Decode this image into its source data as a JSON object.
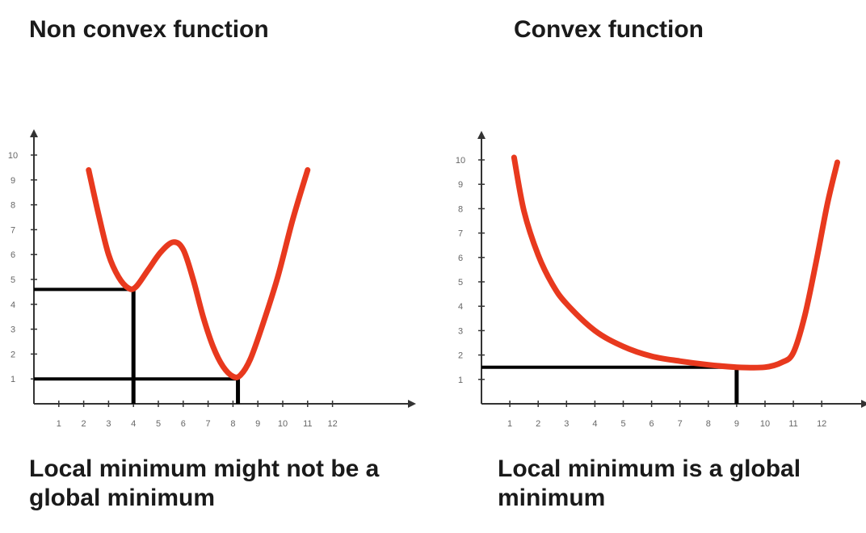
{
  "panels": [
    {
      "title": "Non convex function",
      "caption": "Local minimum might not be a global minimum",
      "curve_color": "#e8391e",
      "x_ticks": [
        1,
        2,
        3,
        4,
        5,
        6,
        7,
        8,
        9,
        10,
        11,
        12
      ],
      "y_ticks": [
        1,
        2,
        3,
        4,
        5,
        6,
        7,
        8,
        9,
        10
      ],
      "curve": [
        [
          2.2,
          9.4
        ],
        [
          2.6,
          7.6
        ],
        [
          3.0,
          6.0
        ],
        [
          3.4,
          5.1
        ],
        [
          3.8,
          4.65
        ],
        [
          4.1,
          4.7
        ],
        [
          4.6,
          5.4
        ],
        [
          5.1,
          6.1
        ],
        [
          5.6,
          6.5
        ],
        [
          6.0,
          6.2
        ],
        [
          6.4,
          5.0
        ],
        [
          6.8,
          3.5
        ],
        [
          7.2,
          2.3
        ],
        [
          7.6,
          1.5
        ],
        [
          8.0,
          1.1
        ],
        [
          8.3,
          1.15
        ],
        [
          8.7,
          1.8
        ],
        [
          9.2,
          3.2
        ],
        [
          9.8,
          5.1
        ],
        [
          10.4,
          7.4
        ],
        [
          11.0,
          9.4
        ]
      ],
      "markers": [
        {
          "label": "local minimum",
          "x": 4.0,
          "y": 4.6
        },
        {
          "label": "global minimum",
          "x": 8.2,
          "y": 1.0
        }
      ]
    },
    {
      "title": "Convex function",
      "caption": "Local minimum is a global minimum",
      "curve_color": "#e8391e",
      "x_ticks": [
        1,
        2,
        3,
        4,
        5,
        6,
        7,
        8,
        9,
        10,
        11,
        12
      ],
      "y_ticks": [
        1,
        2,
        3,
        4,
        5,
        6,
        7,
        8,
        9,
        10
      ],
      "curve": [
        [
          1.15,
          10.1
        ],
        [
          1.5,
          7.9
        ],
        [
          2.0,
          6.1
        ],
        [
          2.5,
          4.9
        ],
        [
          3.0,
          4.1
        ],
        [
          4.0,
          3.0
        ],
        [
          5.0,
          2.35
        ],
        [
          6.0,
          1.95
        ],
        [
          7.0,
          1.75
        ],
        [
          8.0,
          1.6
        ],
        [
          9.0,
          1.5
        ],
        [
          10.0,
          1.5
        ],
        [
          10.6,
          1.7
        ],
        [
          11.0,
          2.1
        ],
        [
          11.4,
          3.6
        ],
        [
          11.8,
          5.8
        ],
        [
          12.2,
          8.2
        ],
        [
          12.55,
          9.9
        ]
      ],
      "markers": [
        {
          "label": "global minimum",
          "x": 9.0,
          "y": 1.5
        }
      ]
    }
  ]
}
